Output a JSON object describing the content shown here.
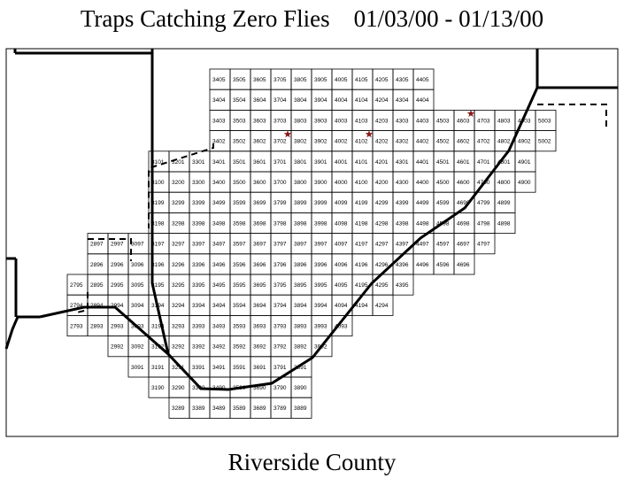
{
  "title": "Traps Catching Zero Flies    01/03/00 - 01/13/00",
  "subtitle": "Riverside County",
  "rows": [
    {
      "x0": 237,
      "labels": [
        "3405",
        "3505",
        "3605",
        "3705",
        "3805",
        "3905",
        "4005",
        "4105",
        "4205",
        "4305",
        "4405"
      ]
    },
    {
      "x0": 237,
      "labels": [
        "3404",
        "3504",
        "3604",
        "3704",
        "3804",
        "3904",
        "4004",
        "4104",
        "4204",
        "4304",
        "4404"
      ]
    },
    {
      "x0": 237,
      "labels": [
        "3403",
        "3503",
        "3603",
        "3703",
        "3803",
        "3903",
        "4003",
        "4103",
        "4203",
        "4303",
        "4403",
        "4503",
        "4603",
        "4703",
        "4803",
        "4903",
        "5003"
      ]
    },
    {
      "x0": 237,
      "labels": [
        "3402",
        "3502",
        "3602",
        "3702",
        "3802",
        "3902",
        "4002",
        "4102",
        "4202",
        "4302",
        "4402",
        "4502",
        "4602",
        "4702",
        "4802",
        "4902",
        "5002"
      ]
    },
    {
      "x0": 168,
      "labels": [
        "3101",
        "3201",
        "3301",
        "3401",
        "3501",
        "3601",
        "3701",
        "3801",
        "3901",
        "4001",
        "4101",
        "4201",
        "4301",
        "4401",
        "4501",
        "4601",
        "4701",
        "4801",
        "4901"
      ]
    },
    {
      "x0": 168,
      "labels": [
        "3100",
        "3200",
        "3300",
        "3400",
        "3500",
        "3600",
        "3700",
        "3800",
        "3900",
        "4000",
        "4100",
        "4200",
        "4300",
        "4400",
        "4500",
        "4600",
        "4700",
        "4800",
        "4900"
      ]
    },
    {
      "x0": 168,
      "labels": [
        "3199",
        "3299",
        "3399",
        "3499",
        "3599",
        "3699",
        "3799",
        "3899",
        "3999",
        "4099",
        "4199",
        "4299",
        "4399",
        "4499",
        "4599",
        "4699",
        "4799",
        "4899"
      ]
    },
    {
      "x0": 168,
      "labels": [
        "3198",
        "3298",
        "3398",
        "3498",
        "3598",
        "3698",
        "3798",
        "3898",
        "3998",
        "4098",
        "4198",
        "4298",
        "4398",
        "4498",
        "4598",
        "4698",
        "4798",
        "4898"
      ]
    },
    {
      "x0": 99,
      "labels": [
        "2897",
        "2997",
        "3097",
        "3197",
        "3297",
        "3397",
        "3497",
        "3597",
        "3697",
        "3797",
        "3897",
        "3997",
        "4097",
        "4197",
        "4297",
        "4397",
        "4497",
        "4597",
        "4697",
        "4797"
      ]
    },
    {
      "x0": 99,
      "labels": [
        "2896",
        "2996",
        "3096",
        "3196",
        "3296",
        "3396",
        "3496",
        "3596",
        "3696",
        "3796",
        "3896",
        "3996",
        "4096",
        "4196",
        "4296",
        "4396",
        "4496",
        "4596",
        "4696"
      ]
    },
    {
      "x0": 76,
      "labels": [
        "2795",
        "2895",
        "2995",
        "3095",
        "3195",
        "3295",
        "3395",
        "3495",
        "3595",
        "3695",
        "3795",
        "3895",
        "3995",
        "4095",
        "4195",
        "4295",
        "4395"
      ]
    },
    {
      "x0": 76,
      "labels": [
        "2794",
        "2894",
        "2994",
        "3094",
        "3194",
        "3294",
        "3394",
        "3494",
        "3594",
        "3694",
        "3794",
        "3894",
        "3994",
        "4094",
        "4194",
        "4294"
      ]
    },
    {
      "x0": 76,
      "labels": [
        "2793",
        "2893",
        "2993",
        "3093",
        "3193",
        "3293",
        "3393",
        "3493",
        "3593",
        "3693",
        "3793",
        "3893",
        "3993",
        "4093"
      ]
    },
    {
      "x0": 122,
      "labels": [
        "2992",
        "3092",
        "3192",
        "3292",
        "3392",
        "3492",
        "3592",
        "3692",
        "3792",
        "3892",
        "3992"
      ]
    },
    {
      "x0": 145,
      "labels": [
        "3091",
        "3191",
        "3291",
        "3391",
        "3491",
        "3591",
        "3691",
        "3791",
        "3891"
      ]
    },
    {
      "x0": 168,
      "labels": [
        "3190",
        "3290",
        "3390",
        "3490",
        "3590",
        "3690",
        "3790",
        "3890"
      ]
    },
    {
      "x0": 191,
      "labels": [
        "3289",
        "3389",
        "3489",
        "3589",
        "3689",
        "3789",
        "3889"
      ]
    }
  ],
  "star_markers": [
    "3702",
    "4102",
    "4603"
  ],
  "colors": {
    "line": "#000000",
    "star": "#8b1a1a",
    "background": "#ffffff"
  }
}
